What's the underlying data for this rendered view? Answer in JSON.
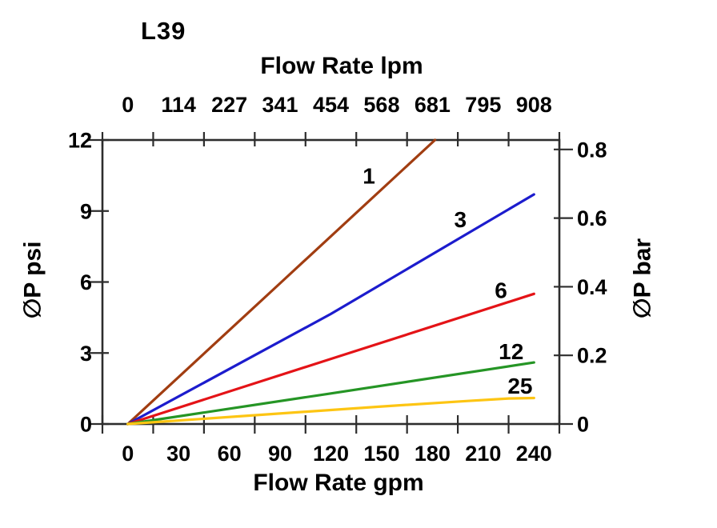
{
  "title": "L39",
  "axes": {
    "top": {
      "title": "Flow Rate lpm",
      "tick_labels": [
        "0",
        "114",
        "227",
        "341",
        "454",
        "568",
        "681",
        "795",
        "908"
      ]
    },
    "bottom": {
      "title": "Flow Rate gpm",
      "tick_labels": [
        "0",
        "30",
        "60",
        "90",
        "120",
        "150",
        "180",
        "210",
        "240"
      ]
    },
    "left": {
      "title": "∅P psi",
      "tick_labels": [
        "12",
        "9",
        "6",
        "3",
        "0"
      ],
      "tick_values_psi": [
        12,
        9,
        6,
        3,
        0
      ]
    },
    "right": {
      "title": "∅P bar",
      "tick_labels": [
        "0.8",
        "0.6",
        "0.4",
        "0.2",
        "0"
      ],
      "tick_values_bar": [
        0.8,
        0.6,
        0.4,
        0.2,
        0
      ]
    }
  },
  "colors": {
    "axis_line": "#2d2d2d",
    "text": "#000000"
  },
  "chart_data": {
    "type": "line",
    "title": "L39",
    "xlabel_top": "Flow Rate lpm",
    "xlabel_bottom": "Flow Rate gpm",
    "ylabel_left": "∅P psi",
    "ylabel_right": "∅P bar",
    "x_axis_gpm": {
      "min": 0,
      "max": 240,
      "tick_step": 30,
      "tick_labels_between_ticks": true
    },
    "x_axis_lpm_ticks": [
      0,
      114,
      227,
      341,
      454,
      568,
      681,
      795,
      908
    ],
    "y_axis_psi": {
      "min": 0,
      "max": 12,
      "tick_step": 3
    },
    "y_axis_bar_ticks": [
      0,
      0.2,
      0.4,
      0.6,
      0.8
    ],
    "psi_per_bar": 14.5,
    "grid": false,
    "legend": "inline-labels-on-curves",
    "series": [
      {
        "name": "1",
        "color": "#a13d11",
        "points_gpm_psi": [
          [
            0,
            0
          ],
          [
            90,
            5.95
          ],
          [
            181.5,
            12
          ]
        ],
        "label_pos_gpm_psi": [
          142.5,
          10.5
        ]
      },
      {
        "name": "3",
        "color": "#1c1ccd",
        "points_gpm_psi": [
          [
            0,
            0
          ],
          [
            120,
            4.65
          ],
          [
            240,
            9.7
          ]
        ],
        "label_pos_gpm_psi": [
          196.5,
          8.65
        ]
      },
      {
        "name": "6",
        "color": "#e41317",
        "points_gpm_psi": [
          [
            0,
            0
          ],
          [
            120,
            2.75
          ],
          [
            240,
            5.5
          ]
        ],
        "label_pos_gpm_psi": [
          220.5,
          5.67
        ]
      },
      {
        "name": "12",
        "color": "#259525",
        "points_gpm_psi": [
          [
            0,
            0
          ],
          [
            120,
            1.29
          ],
          [
            240,
            2.6
          ]
        ],
        "label_pos_gpm_psi": [
          226.5,
          3.08
        ]
      },
      {
        "name": "25",
        "color": "#fdc513",
        "points_gpm_psi": [
          [
            0,
            0
          ],
          [
            150,
            0.74
          ],
          [
            200,
            0.97
          ],
          [
            225,
            1.08
          ],
          [
            240,
            1.1
          ]
        ],
        "label_pos_gpm_psi": [
          231.8,
          1.63
        ]
      }
    ]
  }
}
